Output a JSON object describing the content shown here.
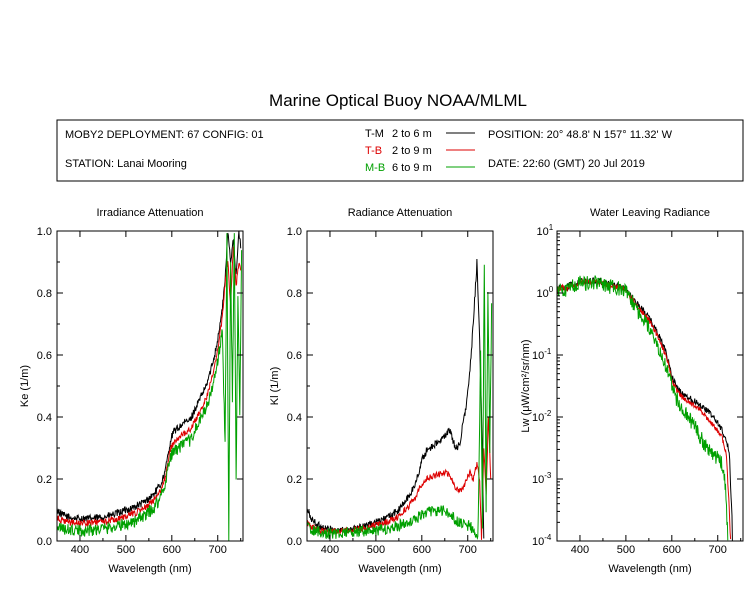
{
  "figure": {
    "title": "Marine Optical Buoy NOAA/MLML",
    "deployment": "MOBY2 DEPLOYMENT: 67 CONFIG: 01",
    "station": "STATION: Lanai Mooring",
    "position": "POSITION: 20° 48.8' N   157° 11.32' W",
    "date": "DATE: 22:60 (GMT) 20 Jul 2019",
    "legend": [
      {
        "tag": "T-M",
        "range": "2 to 6  m",
        "color": "#000000"
      },
      {
        "tag": "T-B",
        "range": "2 to 9  m",
        "color": "#dd0000"
      },
      {
        "tag": "M-B",
        "range": "6 to 9  m",
        "color": "#00a000"
      }
    ]
  },
  "chart_data": [
    {
      "type": "line",
      "title": "Irradiance Attenuation",
      "xlabel": "Wavelength (nm)",
      "ylabel": "Ke  (1/m)",
      "xlim": [
        350,
        755
      ],
      "ylim": [
        0,
        1.0
      ],
      "yscale": "linear",
      "xticks": [
        400,
        500,
        600,
        700
      ],
      "yticks": [
        0,
        0.2,
        0.4,
        0.6,
        0.8,
        1.0
      ],
      "yticklabels": [
        "0.0",
        "0.2",
        "0.4",
        "0.6",
        "0.8",
        "1.0"
      ],
      "series": [
        {
          "name": "T-M",
          "color": "#000000",
          "noise": 0.012,
          "x": [
            350,
            360,
            380,
            400,
            420,
            440,
            460,
            480,
            500,
            520,
            540,
            560,
            575,
            585,
            592,
            598,
            605,
            615,
            625,
            640,
            655,
            665,
            675,
            690,
            700,
            710,
            718,
            722,
            728,
            734,
            740,
            746,
            750
          ],
          "y": [
            0.1,
            0.085,
            0.075,
            0.072,
            0.072,
            0.075,
            0.08,
            0.088,
            0.1,
            0.11,
            0.125,
            0.15,
            0.18,
            0.22,
            0.28,
            0.33,
            0.355,
            0.365,
            0.38,
            0.39,
            0.44,
            0.47,
            0.5,
            0.58,
            0.65,
            0.75,
            0.88,
            1.0,
            0.9,
            0.98,
            0.85,
            1.0,
            0.95
          ]
        },
        {
          "name": "T-B",
          "color": "#dd0000",
          "noise": 0.01,
          "x": [
            350,
            360,
            380,
            400,
            420,
            440,
            460,
            480,
            500,
            520,
            540,
            560,
            575,
            585,
            592,
            598,
            605,
            615,
            625,
            640,
            655,
            665,
            675,
            690,
            700,
            710,
            718,
            722,
            728,
            734,
            740,
            746,
            750
          ],
          "y": [
            0.075,
            0.065,
            0.06,
            0.058,
            0.058,
            0.06,
            0.065,
            0.07,
            0.08,
            0.09,
            0.105,
            0.13,
            0.16,
            0.2,
            0.26,
            0.3,
            0.32,
            0.33,
            0.345,
            0.36,
            0.4,
            0.43,
            0.46,
            0.54,
            0.62,
            0.72,
            0.86,
            0.9,
            0.76,
            0.95,
            0.82,
            0.9,
            0.87
          ]
        },
        {
          "name": "M-B",
          "color": "#00a000",
          "noise": 0.02,
          "x": [
            350,
            360,
            380,
            400,
            420,
            440,
            460,
            480,
            500,
            520,
            540,
            560,
            575,
            585,
            592,
            598,
            605,
            615,
            625,
            640,
            655,
            665,
            675,
            690,
            700,
            710,
            716,
            720,
            724,
            728,
            732,
            736,
            740,
            744,
            748,
            752
          ],
          "y": [
            0.05,
            0.04,
            0.035,
            0.033,
            0.035,
            0.038,
            0.042,
            0.048,
            0.055,
            0.065,
            0.08,
            0.105,
            0.14,
            0.18,
            0.24,
            0.275,
            0.29,
            0.3,
            0.31,
            0.325,
            0.37,
            0.4,
            0.43,
            0.5,
            0.58,
            0.68,
            0.3,
            1.0,
            0.0,
            0.9,
            0.45,
            1.0,
            0.2,
            0.8,
            0.4,
            0.95
          ]
        }
      ]
    },
    {
      "type": "line",
      "title": "Radiance Attenuation",
      "xlabel": "Wavelength (nm)",
      "ylabel": "Kl  (1/m)",
      "xlim": [
        350,
        755
      ],
      "ylim": [
        0,
        1.0
      ],
      "yscale": "linear",
      "xticks": [
        400,
        500,
        600,
        700
      ],
      "yticks": [
        0,
        0.2,
        0.4,
        0.6,
        0.8,
        1.0
      ],
      "yticklabels": [
        "0.0",
        "0.2",
        "0.4",
        "0.6",
        "0.8",
        "1.0"
      ],
      "series": [
        {
          "name": "T-M",
          "color": "#000000",
          "noise": 0.012,
          "x": [
            350,
            360,
            375,
            390,
            410,
            430,
            450,
            470,
            490,
            510,
            530,
            550,
            570,
            585,
            595,
            600,
            610,
            625,
            640,
            650,
            660,
            668,
            675,
            682,
            690,
            698,
            705,
            712,
            720,
            725,
            730,
            735
          ],
          "y": [
            0.1,
            0.07,
            0.05,
            0.04,
            0.035,
            0.035,
            0.04,
            0.045,
            0.055,
            0.065,
            0.08,
            0.1,
            0.14,
            0.18,
            0.23,
            0.26,
            0.29,
            0.31,
            0.32,
            0.34,
            0.36,
            0.32,
            0.3,
            0.31,
            0.38,
            0.45,
            0.55,
            0.7,
            0.9,
            0.7,
            0.4,
            0.0
          ]
        },
        {
          "name": "T-B",
          "color": "#dd0000",
          "noise": 0.01,
          "x": [
            350,
            360,
            375,
            390,
            410,
            430,
            450,
            470,
            490,
            510,
            530,
            550,
            570,
            585,
            595,
            600,
            610,
            625,
            640,
            650,
            660,
            668,
            675,
            682,
            690,
            698,
            705,
            712,
            720,
            726,
            730,
            735,
            740,
            745,
            750
          ],
          "y": [
            0.06,
            0.045,
            0.035,
            0.03,
            0.03,
            0.032,
            0.036,
            0.04,
            0.048,
            0.055,
            0.065,
            0.08,
            0.11,
            0.14,
            0.17,
            0.185,
            0.2,
            0.21,
            0.215,
            0.22,
            0.215,
            0.19,
            0.17,
            0.16,
            0.175,
            0.2,
            0.22,
            0.2,
            0.25,
            0.2,
            0.0,
            0.3,
            0.15,
            0.4,
            0.2
          ]
        },
        {
          "name": "M-B",
          "color": "#00a000",
          "noise": 0.018,
          "x": [
            350,
            360,
            375,
            390,
            410,
            430,
            450,
            470,
            490,
            510,
            530,
            550,
            570,
            590,
            605,
            620,
            640,
            655,
            668,
            680,
            692,
            705,
            715,
            722,
            728,
            732,
            736,
            740,
            744,
            748,
            752
          ],
          "y": [
            0.05,
            0.035,
            0.03,
            0.025,
            0.025,
            0.026,
            0.028,
            0.03,
            0.032,
            0.035,
            0.04,
            0.05,
            0.06,
            0.075,
            0.09,
            0.095,
            0.1,
            0.09,
            0.075,
            0.06,
            0.05,
            0.05,
            0.02,
            0.0,
            0.6,
            0.05,
            0.9,
            0.1,
            0.8,
            0.3,
            0.75
          ]
        }
      ]
    },
    {
      "type": "line",
      "title": "Water Leaving Radiance",
      "xlabel": "Wavelength (nm)",
      "ylabel": "Lw  (μW/cm²/sr/nm)",
      "xlim": [
        350,
        755
      ],
      "ylim": [
        0.0001,
        10
      ],
      "yscale": "log",
      "xticks": [
        400,
        500,
        600,
        700
      ],
      "yticks": [
        0.0001,
        0.001,
        0.01,
        0.1,
        1,
        10
      ],
      "yticklabels": [
        [
          "10",
          "-4"
        ],
        [
          "10",
          "-3"
        ],
        [
          "10",
          "-2"
        ],
        [
          "10",
          "-1"
        ],
        [
          "10",
          "0"
        ],
        [
          "10",
          "1"
        ]
      ],
      "series": [
        {
          "name": "T-M",
          "color": "#000000",
          "noise": 0.05,
          "x": [
            350,
            360,
            370,
            380,
            390,
            400,
            410,
            420,
            440,
            460,
            480,
            500,
            510,
            520,
            530,
            540,
            550,
            560,
            570,
            580,
            590,
            600,
            610,
            620,
            630,
            640,
            650,
            660,
            670,
            680,
            690,
            700,
            710,
            718,
            724,
            728,
            732
          ],
          "y": [
            1.1,
            1.3,
            1.2,
            1.4,
            1.3,
            1.6,
            1.5,
            1.6,
            1.55,
            1.4,
            1.3,
            1.2,
            0.9,
            0.75,
            0.6,
            0.5,
            0.4,
            0.3,
            0.22,
            0.15,
            0.09,
            0.045,
            0.03,
            0.025,
            0.022,
            0.02,
            0.018,
            0.016,
            0.014,
            0.012,
            0.01,
            0.008,
            0.006,
            0.004,
            0.003,
            0.0007,
            0.0001
          ]
        },
        {
          "name": "T-B",
          "color": "#dd0000",
          "noise": 0.04,
          "x": [
            350,
            360,
            370,
            380,
            390,
            400,
            410,
            420,
            440,
            460,
            480,
            500,
            510,
            520,
            530,
            540,
            550,
            560,
            570,
            580,
            590,
            600,
            610,
            620,
            630,
            640,
            650,
            660,
            670,
            680,
            690,
            700,
            710,
            718,
            722,
            726,
            728
          ],
          "y": [
            1.05,
            1.25,
            1.15,
            1.35,
            1.25,
            1.55,
            1.45,
            1.55,
            1.5,
            1.35,
            1.25,
            1.15,
            0.85,
            0.7,
            0.55,
            0.45,
            0.36,
            0.27,
            0.19,
            0.13,
            0.08,
            0.04,
            0.027,
            0.022,
            0.019,
            0.017,
            0.015,
            0.013,
            0.011,
            0.009,
            0.0075,
            0.006,
            0.0045,
            0.0025,
            0.0008,
            0.0002,
            0.0001
          ]
        },
        {
          "name": "M-B",
          "color": "#00a000",
          "noise": 0.12,
          "x": [
            350,
            360,
            370,
            380,
            390,
            400,
            410,
            420,
            440,
            460,
            480,
            500,
            510,
            520,
            530,
            540,
            550,
            560,
            570,
            580,
            590,
            600,
            610,
            620,
            630,
            640,
            650,
            660,
            670,
            680,
            690,
            700,
            708,
            714,
            718,
            720,
            722
          ],
          "y": [
            1.0,
            1.2,
            1.1,
            1.3,
            1.2,
            1.5,
            1.4,
            1.5,
            1.45,
            1.3,
            1.2,
            1.1,
            0.8,
            0.6,
            0.45,
            0.35,
            0.28,
            0.2,
            0.14,
            0.09,
            0.055,
            0.032,
            0.02,
            0.015,
            0.012,
            0.009,
            0.007,
            0.005,
            0.0038,
            0.003,
            0.0025,
            0.0022,
            0.0018,
            0.0011,
            0.0005,
            0.0002,
            0.0001
          ]
        }
      ]
    }
  ]
}
